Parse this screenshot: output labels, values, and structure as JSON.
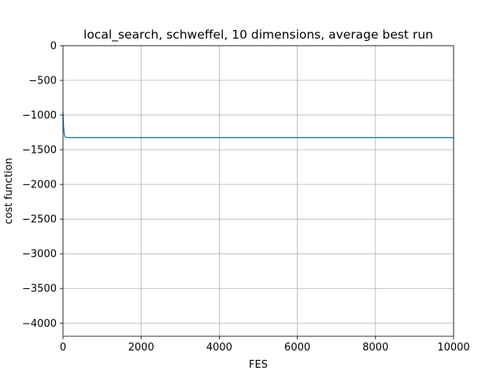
{
  "chart_data": {
    "type": "line",
    "title": "local_search, schweffel, 10 dimensions, average best run",
    "xlabel": "FES",
    "ylabel": "cost function",
    "xlim": [
      0,
      10000
    ],
    "ylim": [
      -4190,
      0
    ],
    "x_ticks": [
      0,
      2000,
      4000,
      6000,
      8000,
      10000
    ],
    "x_tick_labels": [
      "0",
      "2000",
      "4000",
      "6000",
      "8000",
      "10000"
    ],
    "y_ticks": [
      0,
      -500,
      -1000,
      -1500,
      -2000,
      -2500,
      -3000,
      -3500,
      -4000
    ],
    "y_tick_labels": [
      "0",
      "−500",
      "−1000",
      "−1500",
      "−2000",
      "−2500",
      "−3000",
      "−3500",
      "−4000"
    ],
    "grid": true,
    "colors": {
      "line": "#1f77b4",
      "grid": "#b0b0b0"
    },
    "series": [
      {
        "x": [
          0,
          10,
          20,
          30,
          40,
          50,
          60,
          80,
          100,
          150,
          200,
          300,
          500,
          1000,
          2000,
          4000,
          6000,
          8000,
          10000
        ],
        "values": [
          -960,
          -1120,
          -1200,
          -1255,
          -1285,
          -1305,
          -1315,
          -1322,
          -1324,
          -1325,
          -1325,
          -1325,
          -1325,
          -1325,
          -1325,
          -1325,
          -1325,
          -1325,
          -1325
        ]
      }
    ]
  }
}
